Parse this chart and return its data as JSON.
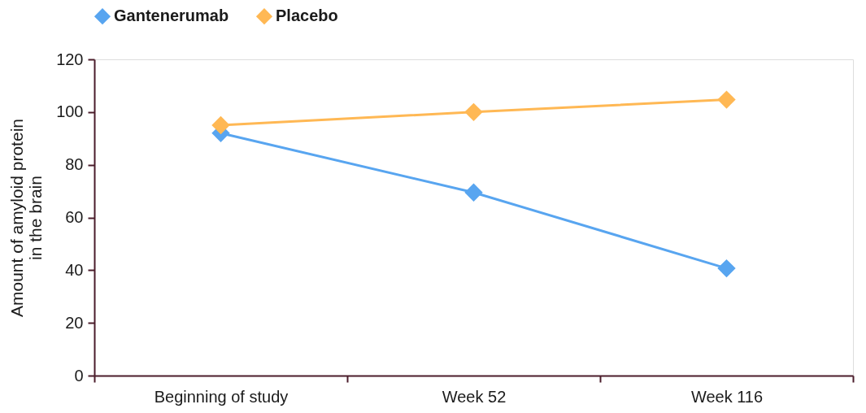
{
  "chart_data": {
    "type": "line",
    "ylabel": "Amount of amyloid protein in the brain",
    "categories": [
      "Beginning of study",
      "Week 52",
      "Week 116"
    ],
    "series": [
      {
        "name": "Gantenerumab",
        "color": "#58a5f0",
        "values": [
          92,
          69.5,
          40.7
        ]
      },
      {
        "name": "Placebo",
        "color": "#ffb854",
        "values": [
          95,
          100,
          104.7
        ]
      }
    ],
    "ylim": [
      0,
      120
    ],
    "yticks": [
      0,
      20,
      40,
      60,
      80,
      100,
      120
    ],
    "marker": "diamond",
    "line_style": "solid",
    "legend": "top",
    "grid": false
  }
}
